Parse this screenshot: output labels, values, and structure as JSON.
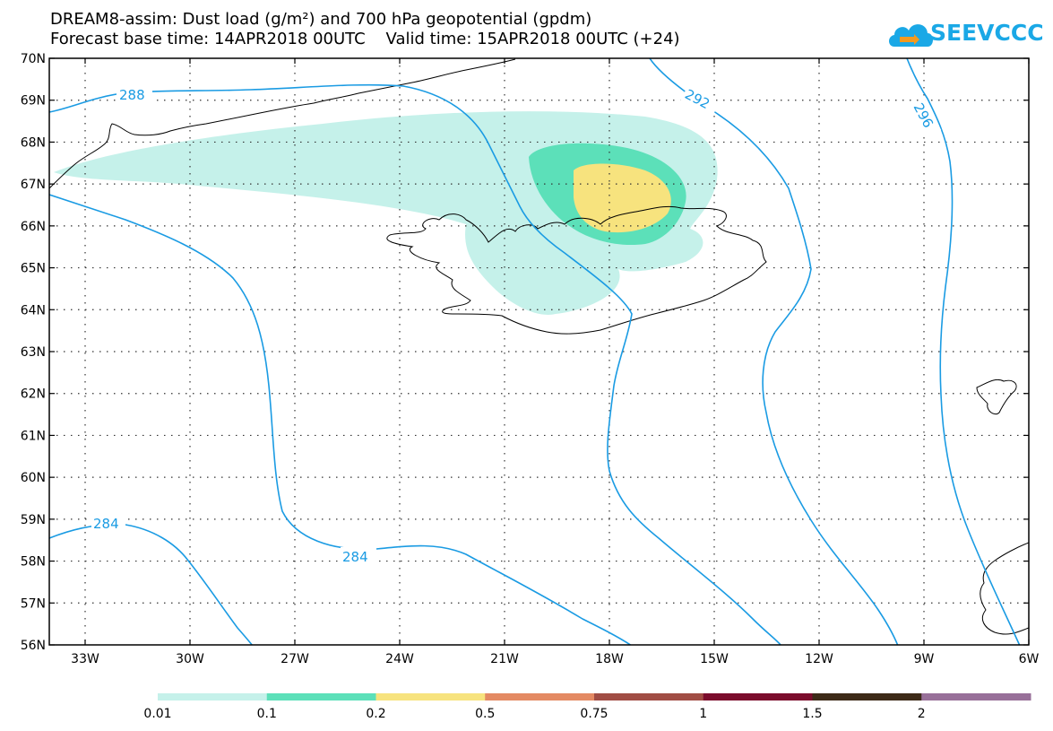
{
  "header": {
    "title_line1": "DREAM8-assim: Dust load (g/m²) and 700 hPa geopotential (gpdm)",
    "title_line2": "Forecast base time: 14APR2018 00UTC    Valid time: 15APR2018 00UTC (+24)",
    "logo_text": "SEEVCCC"
  },
  "map": {
    "lat_labels": [
      "70N",
      "69N",
      "68N",
      "67N",
      "66N",
      "65N",
      "64N",
      "63N",
      "62N",
      "61N",
      "60N",
      "59N",
      "58N",
      "57N",
      "56N"
    ],
    "lon_labels": [
      "33W",
      "30W",
      "27W",
      "24W",
      "21W",
      "18W",
      "15W",
      "12W",
      "9W",
      "6W"
    ],
    "contour_labels": [
      "288",
      "292",
      "296",
      "284",
      "284"
    ]
  },
  "colorbar": {
    "colors": [
      "#c5f1ea",
      "#5ce0b9",
      "#f7e37e",
      "#e48a63",
      "#a14d44",
      "#7b0c2c",
      "#3d2a18",
      "#987099"
    ],
    "labels": [
      "0.01",
      "0.1",
      "0.2",
      "0.5",
      "0.75",
      "1",
      "1.5",
      "2"
    ]
  },
  "colors": {
    "contour": "#1a9be3",
    "dust_low": "#c5f1ea",
    "dust_mid": "#5ce0b9",
    "dust_high": "#f7e37e"
  }
}
